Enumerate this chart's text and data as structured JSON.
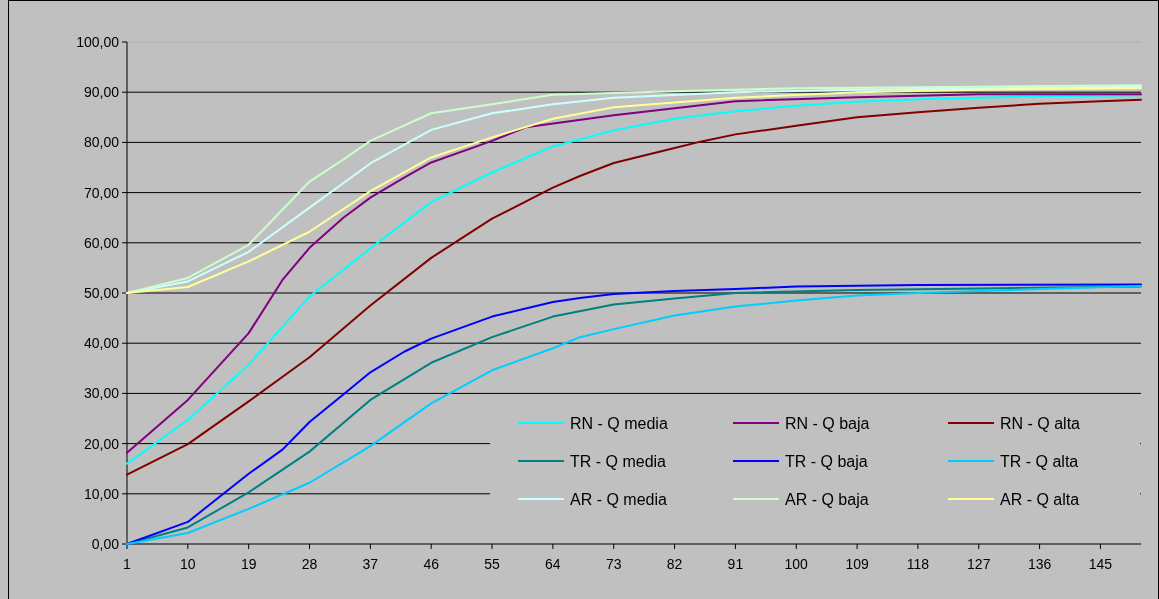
{
  "chart_data": {
    "type": "line",
    "xlim": [
      1,
      151
    ],
    "xticks": [
      1,
      10,
      19,
      28,
      37,
      46,
      55,
      64,
      73,
      82,
      91,
      100,
      109,
      118,
      127,
      136,
      145
    ],
    "ylim": [
      0,
      100
    ],
    "yticks": [
      {
        "value": 0,
        "label": "0,00"
      },
      {
        "value": 10,
        "label": "10,00"
      },
      {
        "value": 20,
        "label": "20,00"
      },
      {
        "value": 30,
        "label": "30,00"
      },
      {
        "value": 40,
        "label": "40,00"
      },
      {
        "value": 50,
        "label": "50,00"
      },
      {
        "value": 60,
        "label": "60,00"
      },
      {
        "value": 70,
        "label": "70,00"
      },
      {
        "value": 80,
        "label": "80,00"
      },
      {
        "value": 90,
        "label": "90,00"
      },
      {
        "value": 100,
        "label": "100,00"
      }
    ],
    "grid": "y",
    "legend": "bottom right",
    "marker": "none",
    "line_style": "solid",
    "series": [
      {
        "name": "RN - Q media",
        "color": "#00ffff",
        "x": [
          1,
          10,
          19,
          28,
          37,
          46,
          55,
          64,
          73,
          82,
          91,
          100,
          109,
          118,
          127,
          136,
          145,
          151
        ],
        "values": [
          16,
          24.7,
          35.7,
          49.3,
          58.9,
          68.1,
          74,
          79.2,
          82.4,
          84.7,
          86.2,
          87.3,
          88.1,
          88.6,
          88.9,
          89.2,
          89.3,
          89.4
        ]
      },
      {
        "name": "RN - Q baja",
        "color": "#800080",
        "x": [
          1,
          10,
          19,
          24,
          28,
          33,
          37,
          42,
          46,
          55,
          60,
          73,
          91,
          109,
          127,
          151
        ],
        "values": [
          18.2,
          28.7,
          42,
          52.6,
          59,
          65,
          69,
          73,
          76,
          80.3,
          83,
          85.4,
          88.2,
          89,
          89.6,
          89.6
        ]
      },
      {
        "name": "RN - Q alta",
        "color": "#800000",
        "x": [
          1,
          10,
          19,
          28,
          37,
          46,
          55,
          64,
          68,
          73,
          82,
          86,
          91,
          100,
          109,
          118,
          127,
          136,
          145,
          151
        ],
        "values": [
          13.8,
          19.9,
          28.4,
          37.2,
          47.5,
          57,
          64.8,
          71,
          73.3,
          75.9,
          78.9,
          80.2,
          81.6,
          83.3,
          85,
          86,
          86.9,
          87.7,
          88.2,
          88.5
        ]
      },
      {
        "name": "TR - Q media",
        "color": "#008080",
        "x": [
          1,
          10,
          19,
          28,
          37,
          46,
          55,
          64,
          73,
          82,
          91,
          109,
          127,
          151
        ],
        "values": [
          0,
          3.3,
          10.3,
          18.4,
          28.7,
          36.1,
          41.2,
          45.3,
          47.7,
          48.9,
          50,
          50.6,
          50.9,
          51.3
        ]
      },
      {
        "name": "TR - Q baja",
        "color": "#0000ff",
        "x": [
          1,
          10,
          19,
          24,
          28,
          33,
          37,
          42,
          46,
          55,
          64,
          68,
          73,
          82,
          91,
          100,
          118,
          151
        ],
        "values": [
          0,
          4.4,
          14,
          18.8,
          24.3,
          29.8,
          34.2,
          38.3,
          40.9,
          45.3,
          48.2,
          49,
          49.8,
          50.4,
          50.8,
          51.3,
          51.6,
          51.7
        ]
      },
      {
        "name": "TR - Q alta",
        "color": "#00ccff",
        "x": [
          1,
          10,
          19,
          28,
          37,
          46,
          55,
          64,
          68,
          73,
          82,
          91,
          100,
          109,
          118,
          127,
          136,
          151
        ],
        "values": [
          0,
          2.2,
          7,
          12.2,
          19.5,
          28,
          34.6,
          39,
          41.2,
          42.8,
          45.5,
          47.3,
          48.5,
          49.5,
          50,
          50.4,
          50.8,
          51.4
        ]
      },
      {
        "name": "AR - Q media",
        "color": "#ccffff",
        "x": [
          1,
          10,
          19,
          28,
          37,
          46,
          55,
          64,
          73,
          91,
          109,
          151
        ],
        "values": [
          50,
          52.3,
          58.2,
          67,
          75.8,
          82.5,
          85.8,
          87.6,
          88.9,
          90,
          90.5,
          91.1
        ]
      },
      {
        "name": "AR - Q baja",
        "color": "#ccffcc",
        "x": [
          1,
          10,
          19,
          28,
          33,
          37,
          46,
          55,
          64,
          82,
          100,
          127,
          151
        ],
        "values": [
          50,
          53,
          59.6,
          72.2,
          76.6,
          80.3,
          85.8,
          87.6,
          89.5,
          90.2,
          90.8,
          91.1,
          91.4
        ]
      },
      {
        "name": "AR - Q alta",
        "color": "#ffff99",
        "x": [
          1,
          10,
          19,
          28,
          37,
          46,
          55,
          64,
          73,
          91,
          109,
          127,
          151
        ],
        "values": [
          50,
          51.2,
          56.3,
          62.2,
          70.3,
          77,
          81,
          84.7,
          87,
          88.9,
          90,
          90.5,
          90.8
        ]
      }
    ]
  }
}
